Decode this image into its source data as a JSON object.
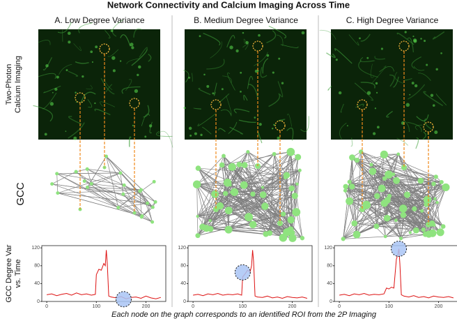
{
  "title": "Network Connectivity and Calcium Imaging Across Time",
  "row_labels": {
    "imaging": [
      "Two-Photon",
      "Calcium Imaging"
    ],
    "graph": "GCC",
    "variance": [
      "GCC Degree Var",
      "vs. Time"
    ]
  },
  "caption": "Each node on the graph corresponds to an identified ROI from the 2P Imaging",
  "chart_data": [
    {
      "type": "line",
      "title": "A. Low Degree Variance",
      "color": "#dd1111",
      "x": [
        0,
        10,
        20,
        30,
        40,
        50,
        60,
        70,
        80,
        90,
        98,
        100,
        105,
        110,
        115,
        118,
        120,
        122,
        125,
        130,
        140,
        150,
        160,
        170,
        180,
        190,
        200,
        210,
        220,
        230
      ],
      "values": [
        15,
        17,
        13,
        16,
        18,
        14,
        19,
        15,
        17,
        14,
        16,
        60,
        72,
        70,
        85,
        80,
        115,
        85,
        12,
        10,
        8,
        11,
        6,
        9,
        10,
        7,
        12,
        8,
        6,
        9
      ],
      "xlim": [
        -10,
        240
      ],
      "ylim": [
        0,
        125
      ],
      "xticks": [
        0,
        100,
        200
      ],
      "yticks": [
        0,
        40,
        80,
        120
      ],
      "highlight": {
        "x": 155,
        "y": 5
      }
    },
    {
      "type": "line",
      "title": "B. Medium Degree Variance",
      "color": "#dd1111",
      "x": [
        0,
        10,
        20,
        30,
        40,
        50,
        60,
        70,
        80,
        90,
        98,
        100,
        105,
        110,
        115,
        118,
        120,
        122,
        125,
        130,
        140,
        150,
        160,
        170,
        180,
        190,
        200,
        210,
        220,
        230
      ],
      "values": [
        14,
        16,
        13,
        17,
        15,
        18,
        14,
        16,
        15,
        17,
        14,
        55,
        62,
        70,
        66,
        80,
        115,
        90,
        12,
        10,
        9,
        12,
        8,
        10,
        7,
        11,
        9,
        8,
        10,
        7
      ],
      "xlim": [
        -10,
        240
      ],
      "ylim": [
        0,
        125
      ],
      "xticks": [
        0,
        100,
        200
      ],
      "yticks": [
        0,
        40,
        80,
        120
      ],
      "highlight": {
        "x": 100,
        "y": 65
      }
    },
    {
      "type": "line",
      "title": "C. High Degree Variance",
      "color": "#dd1111",
      "x": [
        0,
        10,
        20,
        30,
        40,
        50,
        60,
        70,
        80,
        90,
        95,
        100,
        105,
        110,
        115,
        118,
        120,
        122,
        125,
        130,
        140,
        150,
        160,
        170,
        180,
        190,
        200,
        210,
        220,
        230
      ],
      "values": [
        14,
        16,
        13,
        17,
        15,
        18,
        14,
        16,
        15,
        17,
        30,
        28,
        32,
        30,
        95,
        105,
        118,
        85,
        15,
        12,
        10,
        13,
        9,
        11,
        8,
        12,
        10,
        9,
        11,
        8
      ],
      "xlim": [
        -10,
        240
      ],
      "ylim": [
        0,
        125
      ],
      "xticks": [
        0,
        100,
        200
      ],
      "yticks": [
        0,
        40,
        80,
        120
      ],
      "highlight": {
        "x": 120,
        "y": 118
      }
    }
  ]
}
